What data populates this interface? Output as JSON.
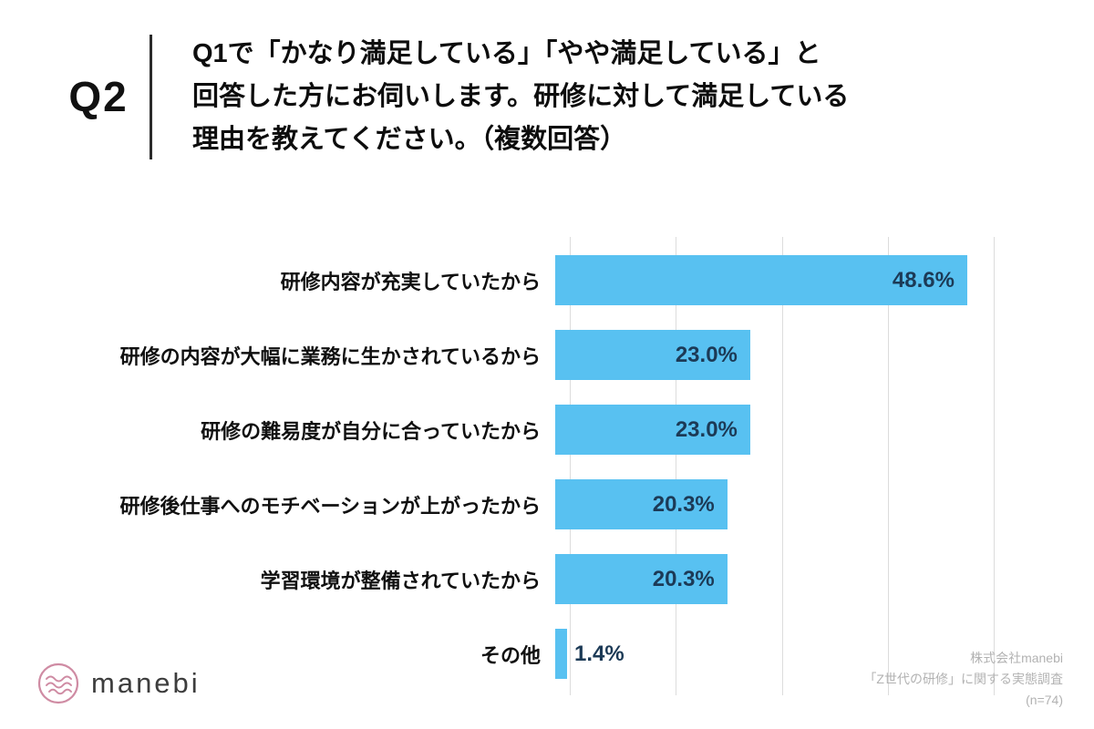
{
  "header": {
    "q_label": "Q2",
    "question_lines": [
      "Q1で「かなり満足している」「やや満足している」と",
      "回答した方にお伺いします。研修に対して満足している",
      "理由を教えてください。（複数回答）"
    ]
  },
  "chart_data": {
    "type": "bar",
    "orientation": "horizontal",
    "title": "",
    "categories": [
      "研修内容が充実していたから",
      "研修の内容が大幅に業務に生かされているから",
      "研修の難易度が自分に合っていたから",
      "研修後仕事へのモチベーションが上がったから",
      "学習環境が整備されていたから",
      "その他"
    ],
    "values": [
      48.6,
      23.0,
      23.0,
      20.3,
      20.3,
      1.4
    ],
    "value_labels": [
      "48.6%",
      "23.0%",
      "23.0%",
      "20.3%",
      "20.3%",
      "1.4%"
    ],
    "xlim": [
      0,
      50
    ],
    "gridlines": [
      0,
      12.5,
      25,
      37.5,
      50
    ],
    "grid_on": true,
    "legend": "none",
    "bar_color": "#58C1F1",
    "value_color": "#1C3A56",
    "grid_color": "#dcdcdc"
  },
  "footer": {
    "source_lines": [
      "株式会社manebi",
      "「Z世代の研修」に関する実態調査",
      "(n=74)"
    ]
  },
  "logo": {
    "text": "manebi",
    "accent_color": "#CF8BA3"
  }
}
